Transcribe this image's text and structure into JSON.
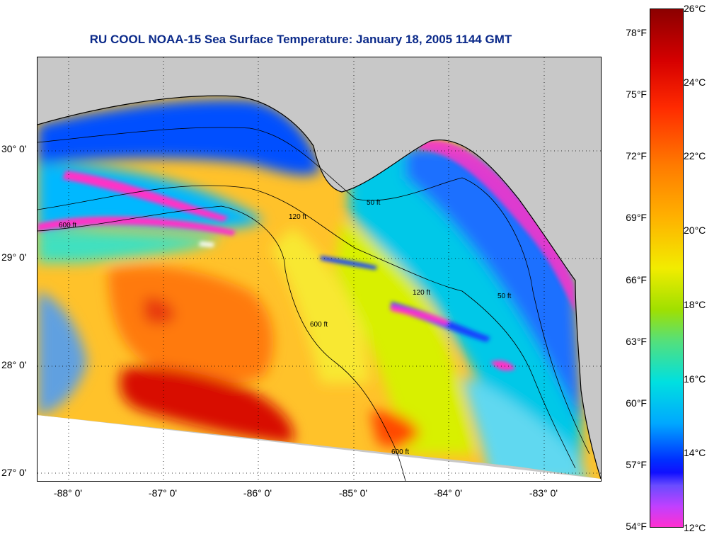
{
  "title": "RU COOL  NOAA-15  Sea Surface Temperature:  January 18, 2005 1144 GMT",
  "map": {
    "lat_labels": [
      "30° 0'",
      "29° 0'",
      "28° 0'",
      "27° 0'"
    ],
    "lon_labels": [
      "-88° 0'",
      "-87° 0'",
      "-86° 0'",
      "-85° 0'",
      "-84° 0'",
      "-83° 0'"
    ],
    "isobath_labels": [
      "50 ft",
      "120 ft",
      "600 ft",
      "600 ft",
      "600 ft",
      "120 ft",
      "50 ft"
    ],
    "colors": {
      "land": "#c8c8c8",
      "no_data": "#ffffff",
      "coast": "#000000"
    }
  },
  "colorbar": {
    "fahrenheit": [
      "78°F",
      "75°F",
      "72°F",
      "69°F",
      "66°F",
      "63°F",
      "60°F",
      "57°F",
      "54°F"
    ],
    "celsius": [
      "26°C",
      "24°C",
      "22°C",
      "20°C",
      "18°C",
      "16°C",
      "14°C",
      "12°C"
    ]
  }
}
